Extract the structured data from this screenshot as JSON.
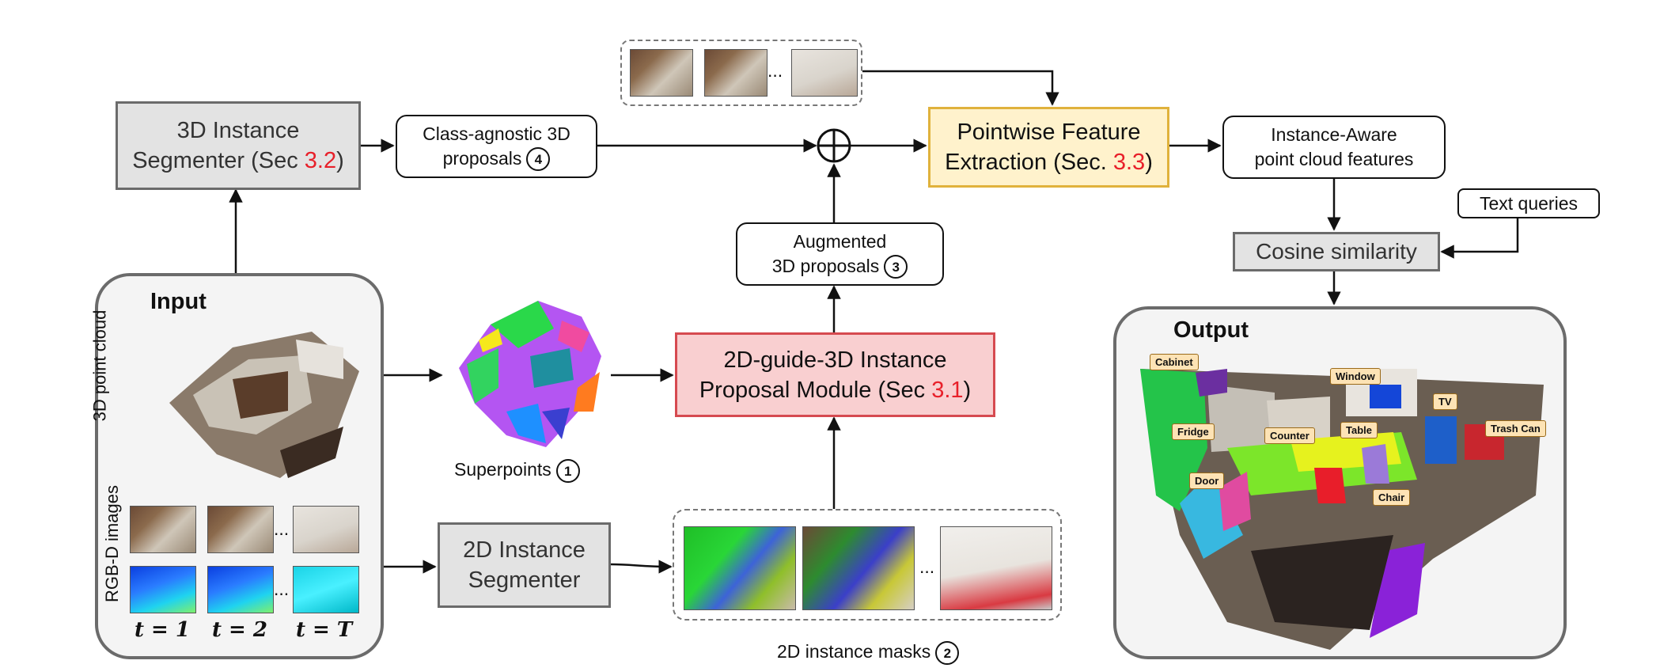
{
  "boxes": {
    "segmenter3d": {
      "line1": "3D Instance",
      "line2": "Segmenter (Sec ",
      "ref": "3.2",
      "end": ")"
    },
    "proposals3d": {
      "line1": "Class-agnostic 3D",
      "line2": "proposals",
      "num": "4"
    },
    "pointwise": {
      "line1": "Pointwise Feature",
      "line2": "Extraction (Sec. ",
      "ref": "3.3",
      "end": ")"
    },
    "instance_aware": {
      "line1": "Instance-Aware",
      "line2": "point cloud features"
    },
    "text_queries": "Text queries",
    "cosine": "Cosine similarity",
    "augmented": {
      "line1": "Augmented",
      "line2": "3D proposals",
      "num": "3"
    },
    "guide": {
      "line1": "2D-guide-3D Instance",
      "line2": "Proposal Module (Sec ",
      "ref": "3.1",
      "end": ")"
    },
    "segmenter2d": {
      "line1": "2D Instance",
      "line2": "Segmenter"
    }
  },
  "input_panel": {
    "title": "Input",
    "point_cloud_label": "3D point cloud",
    "rgbd_label": "RGB-D images",
    "ellipsis": "...",
    "times": [
      "t = 1",
      "t = 2",
      "t = T"
    ]
  },
  "superpoints": {
    "label": "Superpoints",
    "num": "1"
  },
  "masks": {
    "label": "2D instance masks",
    "num": "2",
    "ellipsis": "..."
  },
  "top_frames": {
    "ellipsis": "..."
  },
  "output_panel": {
    "title": "Output",
    "tags": [
      "Cabinet",
      "Window",
      "TV",
      "Fridge",
      "Counter",
      "Table",
      "Trash Can",
      "Door",
      "Chair"
    ]
  },
  "colors": {
    "gray_fill": "#e3e3e3",
    "yellow_fill": "#fff2cc",
    "pink_fill": "#f9cfd0",
    "ref_red": "#e8202a",
    "tag_fill": "#fde3b5"
  }
}
